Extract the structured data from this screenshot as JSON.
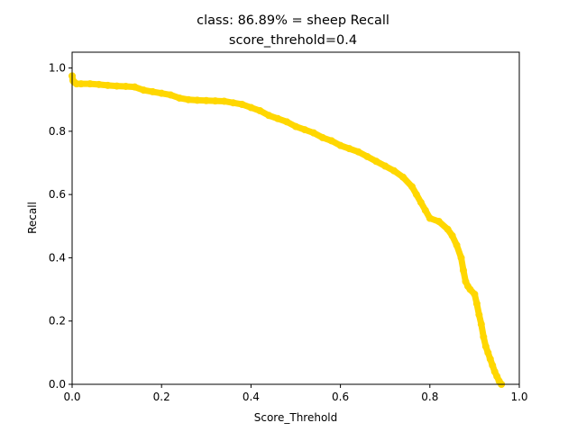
{
  "chart_data": {
    "type": "line",
    "title": "class: 86.89% = sheep Recall",
    "subtitle": "score_threhold=0.4",
    "xlabel": "Score_Threhold",
    "ylabel": "Recall",
    "xlim": [
      0.0,
      1.0
    ],
    "ylim": [
      0.0,
      1.05
    ],
    "xticks": [
      "0.0",
      "0.2",
      "0.4",
      "0.6",
      "0.8",
      "1.0"
    ],
    "yticks": [
      "0.0",
      "0.2",
      "0.4",
      "0.6",
      "0.8",
      "1.0"
    ],
    "grid": false,
    "legend": "none",
    "series": [
      {
        "color": "#ffd700",
        "marker": "circle",
        "x": [
          0.0,
          0.002,
          0.005,
          0.01,
          0.02,
          0.04,
          0.06,
          0.08,
          0.1,
          0.12,
          0.14,
          0.16,
          0.18,
          0.2,
          0.22,
          0.24,
          0.26,
          0.28,
          0.3,
          0.32,
          0.34,
          0.36,
          0.38,
          0.4,
          0.42,
          0.44,
          0.46,
          0.48,
          0.5,
          0.52,
          0.54,
          0.56,
          0.58,
          0.6,
          0.62,
          0.64,
          0.66,
          0.68,
          0.7,
          0.72,
          0.74,
          0.76,
          0.77,
          0.78,
          0.79,
          0.8,
          0.82,
          0.84,
          0.85,
          0.86,
          0.87,
          0.875,
          0.88,
          0.885,
          0.89,
          0.9,
          0.905,
          0.91,
          0.915,
          0.92,
          0.925,
          0.93,
          0.935,
          0.94,
          0.945,
          0.95,
          0.955,
          0.96
        ],
        "y": [
          0.975,
          0.96,
          0.955,
          0.95,
          0.95,
          0.95,
          0.948,
          0.945,
          0.943,
          0.942,
          0.94,
          0.93,
          0.925,
          0.92,
          0.915,
          0.905,
          0.9,
          0.898,
          0.897,
          0.896,
          0.895,
          0.89,
          0.885,
          0.875,
          0.865,
          0.85,
          0.84,
          0.83,
          0.815,
          0.805,
          0.795,
          0.78,
          0.77,
          0.755,
          0.745,
          0.735,
          0.72,
          0.705,
          0.69,
          0.675,
          0.655,
          0.625,
          0.6,
          0.575,
          0.55,
          0.525,
          0.515,
          0.49,
          0.47,
          0.44,
          0.4,
          0.36,
          0.325,
          0.31,
          0.3,
          0.285,
          0.255,
          0.22,
          0.19,
          0.15,
          0.12,
          0.1,
          0.08,
          0.06,
          0.04,
          0.025,
          0.01,
          0.0
        ]
      }
    ]
  }
}
